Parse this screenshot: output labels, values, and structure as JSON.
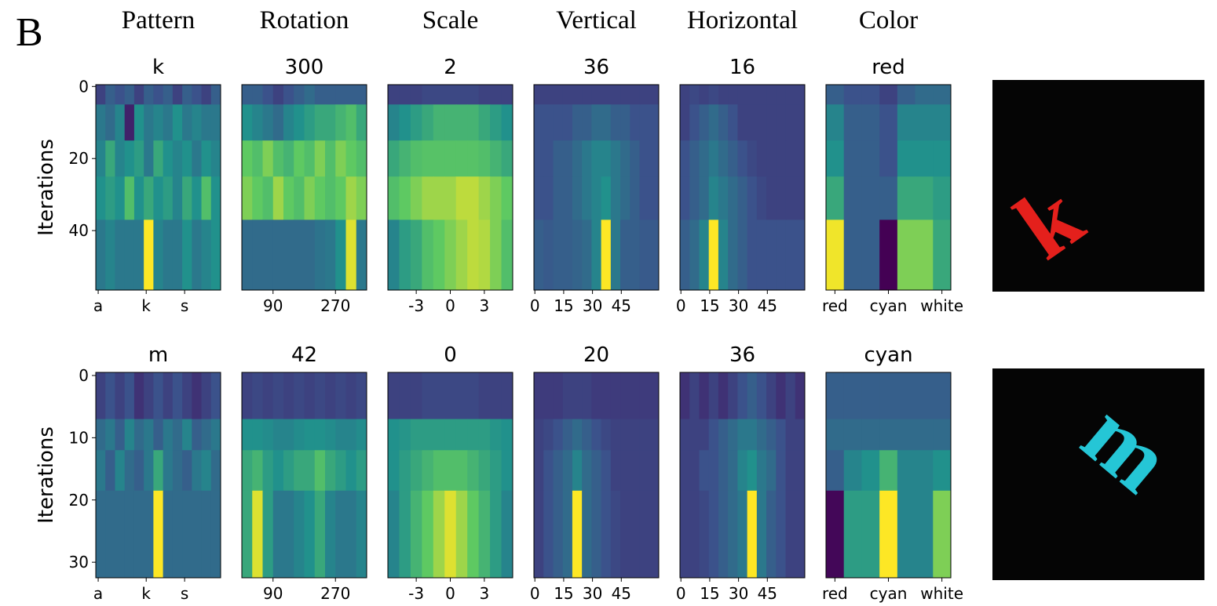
{
  "panel_label": "B",
  "column_headers": [
    "Pattern",
    "Rotation",
    "Scale",
    "Vertical",
    "Horizontal",
    "Color"
  ],
  "chart_data": [
    {
      "type": "heatmap",
      "title": "k",
      "ylabel": "Iterations",
      "colormap": "viridis",
      "ylim": [
        -0.5,
        56.5
      ],
      "yticks": [
        0,
        20,
        40
      ],
      "xlim": [
        -0.5,
        25.5
      ],
      "xticks": [
        {
          "value": 0,
          "label": "a"
        },
        {
          "value": 10,
          "label": "k"
        },
        {
          "value": 18,
          "label": "s"
        }
      ],
      "row_edges": [
        -0.5,
        5,
        15,
        25,
        37,
        56.5
      ],
      "z": [
        [
          0.2,
          0.3,
          0.25,
          0.3,
          0.2,
          0.3,
          0.25,
          0.3,
          0.2,
          0.3,
          0.25,
          0.2,
          0.3
        ],
        [
          0.4,
          0.35,
          0.45,
          0.1,
          0.5,
          0.4,
          0.45,
          0.4,
          0.5,
          0.4,
          0.45,
          0.4,
          0.4
        ],
        [
          0.45,
          0.6,
          0.45,
          0.5,
          0.55,
          0.4,
          0.6,
          0.5,
          0.45,
          0.5,
          0.4,
          0.5,
          0.45
        ],
        [
          0.5,
          0.55,
          0.5,
          0.7,
          0.5,
          0.6,
          0.5,
          0.55,
          0.45,
          0.6,
          0.5,
          0.7,
          0.5
        ],
        [
          0.4,
          0.45,
          0.4,
          0.4,
          0.4,
          1.0,
          0.45,
          0.4,
          0.4,
          0.5,
          0.4,
          0.45,
          0.5
        ]
      ]
    },
    {
      "type": "heatmap",
      "title": "300",
      "colormap": "viridis",
      "ylim": [
        -0.5,
        56.5
      ],
      "xlim": [
        0,
        360
      ],
      "xticks": [
        90,
        270
      ],
      "row_edges": [
        -0.5,
        5,
        15,
        25,
        37,
        56.5
      ],
      "z": [
        [
          0.3,
          0.3,
          0.25,
          0.2,
          0.25,
          0.3,
          0.35,
          0.3,
          0.3,
          0.3,
          0.3,
          0.3
        ],
        [
          0.5,
          0.45,
          0.4,
          0.35,
          0.45,
          0.5,
          0.55,
          0.6,
          0.6,
          0.65,
          0.7,
          0.6
        ],
        [
          0.75,
          0.7,
          0.8,
          0.7,
          0.65,
          0.75,
          0.7,
          0.8,
          0.7,
          0.8,
          0.75,
          0.7
        ],
        [
          0.8,
          0.75,
          0.7,
          0.85,
          0.75,
          0.7,
          0.8,
          0.75,
          0.7,
          0.75,
          0.85,
          0.8
        ],
        [
          0.35,
          0.35,
          0.35,
          0.35,
          0.35,
          0.35,
          0.35,
          0.38,
          0.4,
          0.5,
          0.95,
          0.4
        ]
      ]
    },
    {
      "type": "heatmap",
      "title": "2",
      "colormap": "viridis",
      "ylim": [
        -0.5,
        56.5
      ],
      "xlim": [
        -5.5,
        5.5
      ],
      "xticks": [
        -3,
        0,
        3
      ],
      "row_edges": [
        -0.5,
        5,
        15,
        25,
        37,
        56.5
      ],
      "z": [
        [
          0.2,
          0.2,
          0.2,
          0.22,
          0.22,
          0.22,
          0.22,
          0.22,
          0.2,
          0.2,
          0.2
        ],
        [
          0.45,
          0.5,
          0.55,
          0.6,
          0.65,
          0.65,
          0.65,
          0.65,
          0.6,
          0.55,
          0.5
        ],
        [
          0.6,
          0.65,
          0.7,
          0.72,
          0.72,
          0.72,
          0.72,
          0.72,
          0.7,
          0.65,
          0.6
        ],
        [
          0.7,
          0.75,
          0.8,
          0.85,
          0.85,
          0.85,
          0.9,
          0.9,
          0.85,
          0.8,
          0.75
        ],
        [
          0.45,
          0.55,
          0.6,
          0.7,
          0.75,
          0.8,
          0.85,
          0.9,
          0.88,
          0.8,
          0.7
        ]
      ]
    },
    {
      "type": "heatmap",
      "title": "36",
      "colormap": "viridis",
      "ylim": [
        -0.5,
        56.5
      ],
      "xlim": [
        -0.5,
        64.5
      ],
      "xticks": [
        0,
        15,
        30,
        45
      ],
      "row_edges": [
        -0.5,
        5,
        15,
        25,
        37,
        56.5
      ],
      "z": [
        [
          0.2,
          0.2,
          0.2,
          0.2,
          0.2,
          0.2,
          0.2,
          0.2,
          0.2,
          0.2,
          0.2,
          0.2,
          0.2
        ],
        [
          0.25,
          0.25,
          0.25,
          0.25,
          0.3,
          0.3,
          0.35,
          0.35,
          0.3,
          0.3,
          0.25,
          0.25,
          0.25
        ],
        [
          0.25,
          0.25,
          0.3,
          0.3,
          0.35,
          0.4,
          0.45,
          0.45,
          0.4,
          0.35,
          0.3,
          0.25,
          0.25
        ],
        [
          0.25,
          0.25,
          0.3,
          0.3,
          0.35,
          0.4,
          0.45,
          0.5,
          0.4,
          0.35,
          0.3,
          0.25,
          0.25
        ],
        [
          0.3,
          0.28,
          0.3,
          0.3,
          0.32,
          0.35,
          0.45,
          1.0,
          0.4,
          0.3,
          0.3,
          0.28,
          0.28
        ]
      ]
    },
    {
      "type": "heatmap",
      "title": "16",
      "colormap": "viridis",
      "ylim": [
        -0.5,
        56.5
      ],
      "xlim": [
        -0.5,
        64.5
      ],
      "xticks": [
        0,
        15,
        30,
        45
      ],
      "row_edges": [
        -0.5,
        5,
        15,
        25,
        37,
        56.5
      ],
      "z": [
        [
          0.2,
          0.22,
          0.2,
          0.22,
          0.2,
          0.2,
          0.2,
          0.2,
          0.2,
          0.2,
          0.2,
          0.2,
          0.2
        ],
        [
          0.2,
          0.25,
          0.3,
          0.35,
          0.3,
          0.25,
          0.2,
          0.2,
          0.2,
          0.2,
          0.2,
          0.2,
          0.2
        ],
        [
          0.25,
          0.3,
          0.35,
          0.4,
          0.35,
          0.3,
          0.25,
          0.22,
          0.2,
          0.2,
          0.2,
          0.2,
          0.2
        ],
        [
          0.25,
          0.3,
          0.35,
          0.45,
          0.4,
          0.35,
          0.3,
          0.25,
          0.22,
          0.2,
          0.2,
          0.2,
          0.2
        ],
        [
          0.3,
          0.35,
          0.45,
          1.0,
          0.45,
          0.35,
          0.3,
          0.25,
          0.25,
          0.25,
          0.25,
          0.25,
          0.25
        ]
      ]
    },
    {
      "type": "heatmap",
      "title": "red",
      "colormap": "viridis",
      "ylim": [
        -0.5,
        56.5
      ],
      "xlim": [
        -0.5,
        6.5
      ],
      "xticks": [
        {
          "value": 0,
          "label": "red"
        },
        {
          "value": 3,
          "label": "cyan"
        },
        {
          "value": 6,
          "label": "white"
        }
      ],
      "row_edges": [
        -0.5,
        5,
        15,
        25,
        37,
        56.5
      ],
      "z": [
        [
          0.3,
          0.25,
          0.25,
          0.2,
          0.3,
          0.35,
          0.35
        ],
        [
          0.45,
          0.3,
          0.3,
          0.25,
          0.45,
          0.45,
          0.45
        ],
        [
          0.5,
          0.3,
          0.3,
          0.25,
          0.5,
          0.5,
          0.5
        ],
        [
          0.6,
          0.3,
          0.3,
          0.3,
          0.6,
          0.6,
          0.55
        ],
        [
          0.98,
          0.3,
          0.3,
          0.0,
          0.8,
          0.8,
          0.6
        ]
      ]
    },
    {
      "type": "heatmap",
      "title": "m",
      "ylabel": "Iterations",
      "colormap": "viridis",
      "ylim": [
        -0.5,
        32.5
      ],
      "yticks": [
        0,
        10,
        20,
        30
      ],
      "xlim": [
        -0.5,
        25.5
      ],
      "xticks": [
        {
          "value": 0,
          "label": "a"
        },
        {
          "value": 10,
          "label": "k"
        },
        {
          "value": 18,
          "label": "s"
        }
      ],
      "row_edges": [
        -0.5,
        7,
        12,
        18.5,
        32.5
      ],
      "z": [
        [
          0.2,
          0.25,
          0.2,
          0.25,
          0.15,
          0.2,
          0.25,
          0.2,
          0.25,
          0.2,
          0.15,
          0.2,
          0.25
        ],
        [
          0.35,
          0.4,
          0.3,
          0.45,
          0.35,
          0.4,
          0.3,
          0.4,
          0.35,
          0.45,
          0.3,
          0.35,
          0.4
        ],
        [
          0.4,
          0.3,
          0.45,
          0.35,
          0.3,
          0.4,
          0.6,
          0.4,
          0.35,
          0.3,
          0.4,
          0.45,
          0.35
        ],
        [
          0.35,
          0.35,
          0.35,
          0.35,
          0.35,
          0.35,
          1.0,
          0.35,
          0.35,
          0.35,
          0.35,
          0.35,
          0.35
        ]
      ]
    },
    {
      "type": "heatmap",
      "title": "42",
      "colormap": "viridis",
      "ylim": [
        -0.5,
        32.5
      ],
      "xlim": [
        0,
        360
      ],
      "xticks": [
        90,
        270
      ],
      "row_edges": [
        -0.5,
        7,
        12,
        18.5,
        32.5
      ],
      "z": [
        [
          0.2,
          0.22,
          0.2,
          0.22,
          0.2,
          0.22,
          0.2,
          0.22,
          0.2,
          0.22,
          0.2,
          0.22
        ],
        [
          0.5,
          0.5,
          0.48,
          0.45,
          0.45,
          0.48,
          0.5,
          0.5,
          0.48,
          0.45,
          0.45,
          0.48
        ],
        [
          0.6,
          0.65,
          0.55,
          0.5,
          0.55,
          0.6,
          0.6,
          0.7,
          0.6,
          0.55,
          0.5,
          0.55
        ],
        [
          0.6,
          0.95,
          0.55,
          0.4,
          0.4,
          0.45,
          0.5,
          0.6,
          0.45,
          0.4,
          0.4,
          0.45
        ]
      ]
    },
    {
      "type": "heatmap",
      "title": "0",
      "colormap": "viridis",
      "ylim": [
        -0.5,
        32.5
      ],
      "xlim": [
        -5.5,
        5.5
      ],
      "xticks": [
        -3,
        0,
        3
      ],
      "row_edges": [
        -0.5,
        7,
        12,
        18.5,
        32.5
      ],
      "z": [
        [
          0.2,
          0.2,
          0.2,
          0.22,
          0.22,
          0.22,
          0.22,
          0.22,
          0.2,
          0.2,
          0.2
        ],
        [
          0.5,
          0.52,
          0.55,
          0.55,
          0.55,
          0.55,
          0.55,
          0.55,
          0.55,
          0.52,
          0.5
        ],
        [
          0.5,
          0.55,
          0.6,
          0.65,
          0.7,
          0.7,
          0.7,
          0.65,
          0.6,
          0.55,
          0.5
        ],
        [
          0.45,
          0.55,
          0.65,
          0.75,
          0.85,
          0.95,
          0.85,
          0.75,
          0.65,
          0.55,
          0.45
        ]
      ]
    },
    {
      "type": "heatmap",
      "title": "20",
      "colormap": "viridis",
      "ylim": [
        -0.5,
        32.5
      ],
      "xlim": [
        -0.5,
        64.5
      ],
      "xticks": [
        0,
        15,
        30,
        45
      ],
      "row_edges": [
        -0.5,
        7,
        12,
        18.5,
        32.5
      ],
      "z": [
        [
          0.18,
          0.18,
          0.18,
          0.2,
          0.2,
          0.2,
          0.18,
          0.18,
          0.18,
          0.18,
          0.18,
          0.18,
          0.18
        ],
        [
          0.2,
          0.22,
          0.25,
          0.3,
          0.35,
          0.3,
          0.25,
          0.22,
          0.2,
          0.2,
          0.2,
          0.2,
          0.2
        ],
        [
          0.2,
          0.25,
          0.3,
          0.35,
          0.45,
          0.35,
          0.3,
          0.25,
          0.2,
          0.2,
          0.2,
          0.2,
          0.2
        ],
        [
          0.2,
          0.25,
          0.3,
          0.35,
          1.0,
          0.35,
          0.3,
          0.25,
          0.22,
          0.2,
          0.2,
          0.2,
          0.2
        ]
      ]
    },
    {
      "type": "heatmap",
      "title": "36",
      "colormap": "viridis",
      "ylim": [
        -0.5,
        32.5
      ],
      "xlim": [
        -0.5,
        64.5
      ],
      "xticks": [
        0,
        15,
        30,
        45
      ],
      "row_edges": [
        -0.5,
        7,
        12,
        18.5,
        32.5
      ],
      "z": [
        [
          0.15,
          0.2,
          0.15,
          0.2,
          0.15,
          0.2,
          0.25,
          0.3,
          0.25,
          0.2,
          0.15,
          0.2,
          0.15
        ],
        [
          0.2,
          0.2,
          0.2,
          0.25,
          0.3,
          0.35,
          0.4,
          0.4,
          0.35,
          0.3,
          0.25,
          0.2,
          0.2
        ],
        [
          0.2,
          0.2,
          0.25,
          0.25,
          0.3,
          0.35,
          0.45,
          0.5,
          0.4,
          0.35,
          0.25,
          0.2,
          0.2
        ],
        [
          0.2,
          0.2,
          0.22,
          0.25,
          0.3,
          0.35,
          0.4,
          1.0,
          0.4,
          0.3,
          0.25,
          0.2,
          0.2
        ]
      ]
    },
    {
      "type": "heatmap",
      "title": "cyan",
      "colormap": "viridis",
      "ylim": [
        -0.5,
        32.5
      ],
      "xlim": [
        -0.5,
        6.5
      ],
      "xticks": [
        {
          "value": 0,
          "label": "red"
        },
        {
          "value": 3,
          "label": "cyan"
        },
        {
          "value": 6,
          "label": "white"
        }
      ],
      "row_edges": [
        -0.5,
        7,
        12,
        18.5,
        32.5
      ],
      "z": [
        [
          0.3,
          0.3,
          0.3,
          0.3,
          0.3,
          0.3,
          0.3
        ],
        [
          0.35,
          0.35,
          0.35,
          0.35,
          0.35,
          0.35,
          0.35
        ],
        [
          0.3,
          0.45,
          0.5,
          0.65,
          0.45,
          0.45,
          0.5
        ],
        [
          0.02,
          0.55,
          0.55,
          1.0,
          0.45,
          0.45,
          0.8
        ]
      ]
    }
  ],
  "images": [
    {
      "glyph": "k",
      "color": "#e4201c"
    },
    {
      "glyph": "m",
      "color": "#25c6d6"
    }
  ]
}
